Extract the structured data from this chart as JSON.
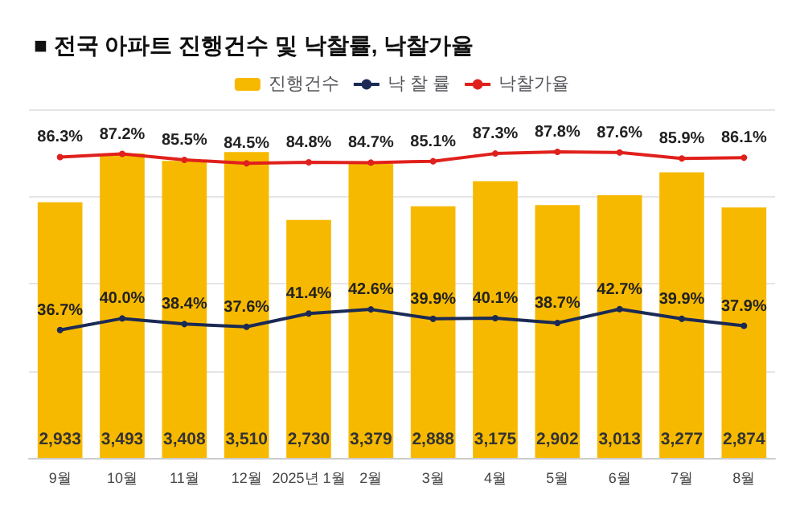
{
  "chart_data": {
    "type": "bar",
    "title": "■ 전국 아파트 진행건수 및 낙찰률, 낙찰가율",
    "categories": [
      "9월",
      "10월",
      "11월",
      "12월",
      "2025년 1월",
      "2월",
      "3월",
      "4월",
      "5월",
      "6월",
      "7월",
      "8월"
    ],
    "series": [
      {
        "name": "진행건수",
        "color": "#f7b900",
        "values": [
          2933,
          3493,
          3408,
          3510,
          2730,
          3379,
          2888,
          3175,
          2902,
          3013,
          3277,
          2874
        ],
        "value_labels": [
          "2,933",
          "3,493",
          "3,408",
          "3,510",
          "2,730",
          "3,379",
          "2,888",
          "3,175",
          "2,902",
          "3,013",
          "3,277",
          "2,874"
        ]
      },
      {
        "name": "낙 찰 률",
        "type": "line",
        "axis": "y2",
        "color": "#1b2a55",
        "values": [
          36.7,
          40.0,
          38.4,
          37.6,
          41.4,
          42.6,
          39.9,
          40.1,
          38.7,
          42.7,
          39.9,
          37.9
        ],
        "value_labels": [
          "36.7%",
          "40.0%",
          "38.4%",
          "37.6%",
          "41.4%",
          "42.6%",
          "39.9%",
          "40.1%",
          "38.7%",
          "42.7%",
          "39.9%",
          "37.9%"
        ]
      },
      {
        "name": "낙찰가율",
        "type": "line",
        "axis": "y2",
        "color": "#e0201c",
        "values": [
          86.3,
          87.2,
          85.5,
          84.5,
          84.8,
          84.7,
          85.1,
          87.3,
          87.8,
          87.6,
          85.9,
          86.1
        ],
        "value_labels": [
          "86.3%",
          "87.2%",
          "85.5%",
          "84.5%",
          "84.8%",
          "84.7%",
          "85.1%",
          "87.3%",
          "87.8%",
          "87.6%",
          "85.9%",
          "86.1%"
        ]
      }
    ],
    "grid": "y",
    "legend": "top",
    "marker": "circle"
  }
}
